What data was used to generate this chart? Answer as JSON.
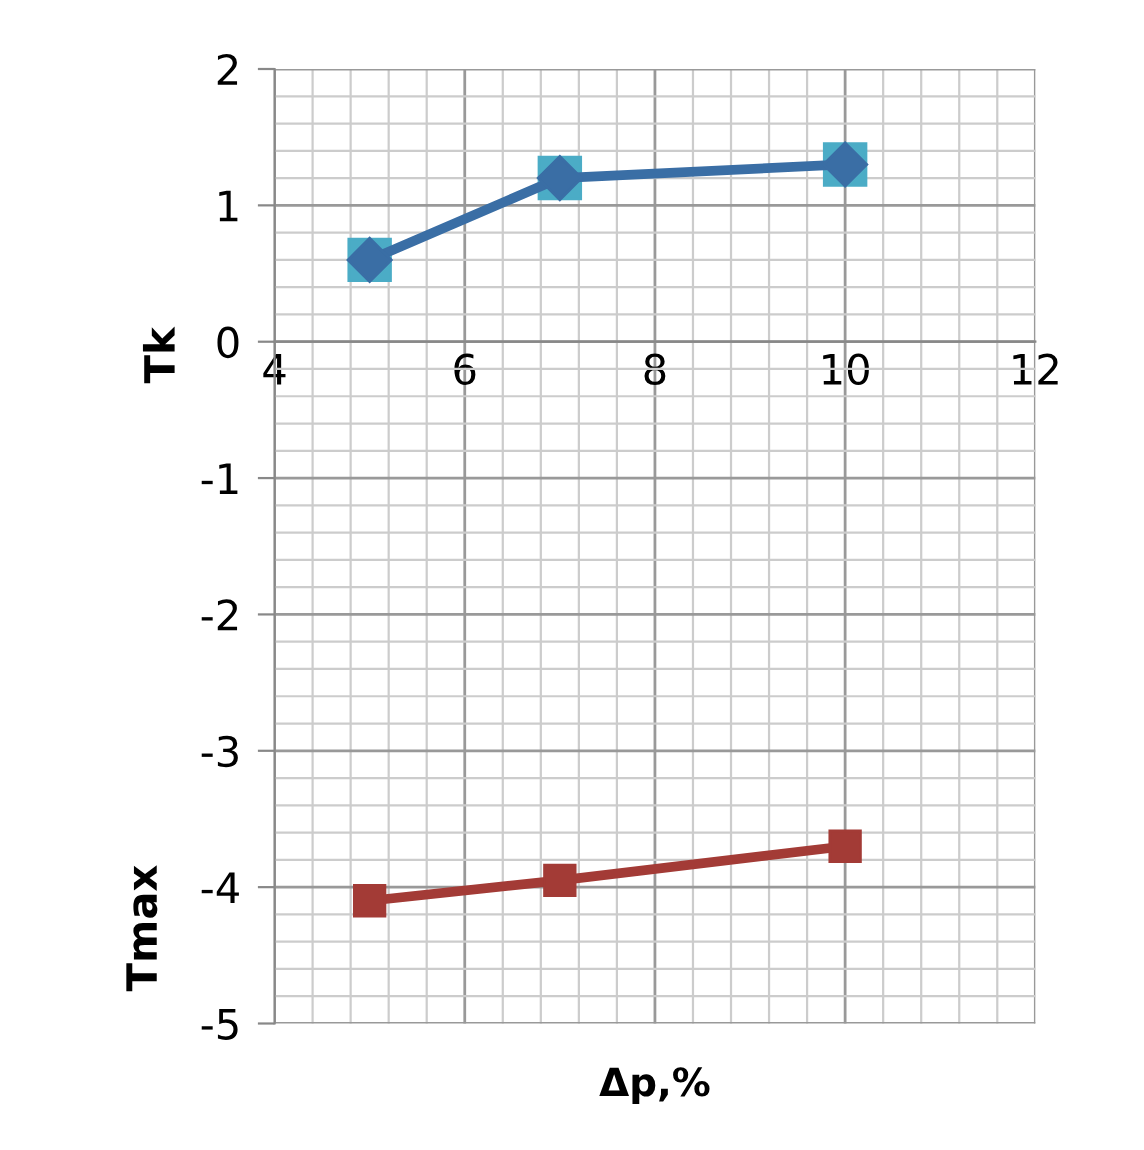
{
  "chart_data": {
    "type": "line",
    "xlabel": "Δp,%",
    "ylabel": "Tk",
    "annotations": [
      "Tmax"
    ],
    "x": [
      5,
      7,
      10
    ],
    "series": [
      {
        "type": "scatter",
        "color": "#4bacc6",
        "marker": "square",
        "values": [
          0.6,
          1.2,
          1.3
        ]
      },
      {
        "color": "#3a6ea5",
        "marker": "diamond",
        "values": [
          0.6,
          1.2,
          1.3
        ]
      },
      {
        "color": "#a33b36",
        "marker": "square",
        "values": [
          -4.1,
          -3.95,
          -3.7
        ]
      }
    ],
    "xlim": [
      4,
      12
    ],
    "xticks": [
      4,
      6,
      8,
      10,
      12
    ],
    "ylim": [
      -5,
      2
    ],
    "yticks": [
      -5,
      -4,
      -3,
      -2,
      -1,
      0,
      1,
      2
    ],
    "grid": true,
    "legend": false
  }
}
